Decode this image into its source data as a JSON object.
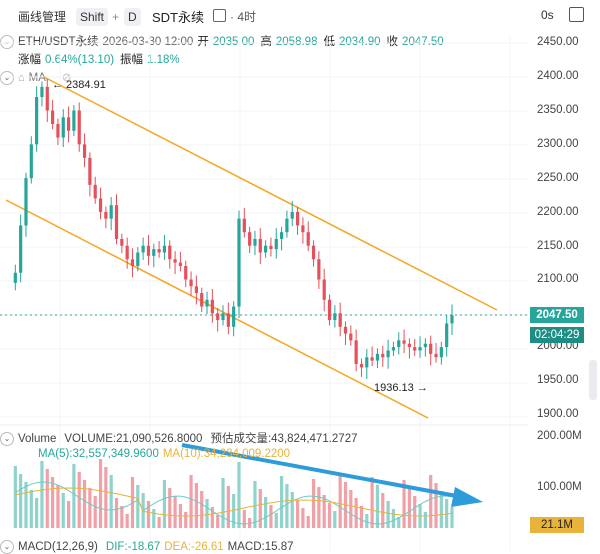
{
  "toolbar": {
    "drawing_manager": "画线管理",
    "shift_key": "Shift",
    "plus": "+",
    "d_key": "D",
    "symbol_title": "SDT永续",
    "timeframe": "· 4时",
    "seconds": "0s"
  },
  "ohlc": {
    "pair": "ETH/USDT永续",
    "date": "2026-03-30 12:00",
    "open_label": "开",
    "open": "2035.00",
    "high_label": "高",
    "high": "2058.98",
    "low_label": "低",
    "low": "2034.90",
    "close_label": "收",
    "close": "2047.50",
    "change_label": "涨幅",
    "change": "0.64%(13.10)",
    "amplitude_label": "振幅",
    "amplitude": "1.18%"
  },
  "ma_label": "MA",
  "annotations": {
    "high_marker": "← 2384.91",
    "low_marker": "1936.13 →"
  },
  "price_axis": [
    "2450.00",
    "2400.00",
    "2350.00",
    "2300.00",
    "2250.00",
    "2200.00",
    "2150.00",
    "2100.00",
    "2050.00",
    "2000.00",
    "1950.00",
    "1900.00"
  ],
  "current_price": "2047.50",
  "countdown": "02:04:29",
  "volume": {
    "label": "Volume",
    "volume_text": "VOLUME:21,090,526.8000",
    "estimated_text": "预估成交量:43,824,471.2727",
    "ma5_text": "MA(5):32,557,349.9600",
    "ma10_text": "MA(10):34,234,009.2200",
    "axis": [
      "200.00M",
      "100.00M"
    ],
    "current": "21.1M"
  },
  "macd": {
    "label": "MACD(12,26,9)",
    "dif": "DIF:-18.67",
    "dea": "DEA:-26.61",
    "macd": "MACD:15.87"
  },
  "colors": {
    "up": "#26a69a",
    "down": "#e5505a",
    "channel": "#f5a623",
    "arrow": "#2d9cdb",
    "accent": "#e8b33a"
  }
}
